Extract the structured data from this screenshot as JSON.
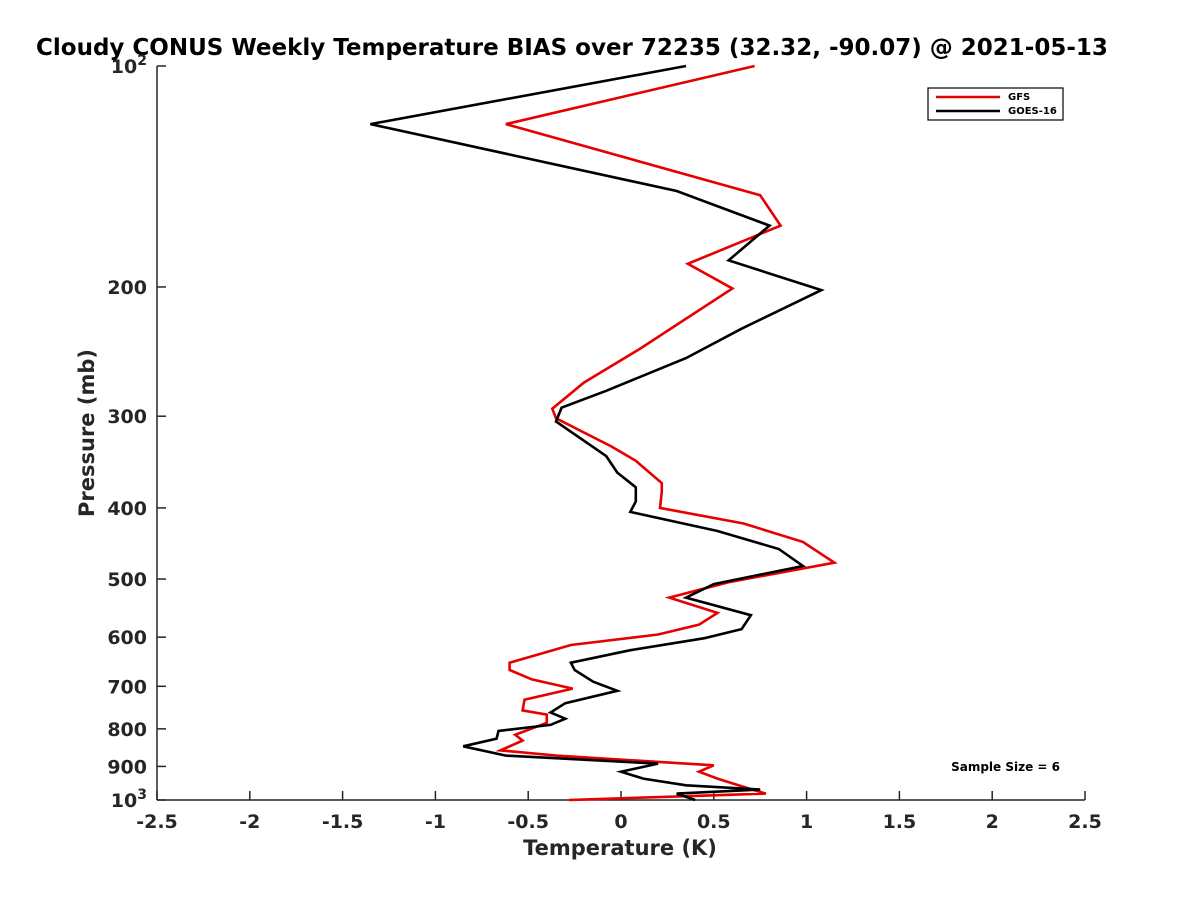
{
  "chart_data": {
    "type": "line",
    "title": "Cloudy CONUS Weekly Temperature BIAS over 72235 (32.32, -90.07) @ 2021-05-13",
    "xlabel": "Temperature (K)",
    "ylabel": "Pressure (mb)",
    "xlim": [
      -2.5,
      2.5
    ],
    "ylim": [
      100,
      1000
    ],
    "yscale": "log",
    "y_reversed": true,
    "grid": false,
    "legend_position": "top-right",
    "x_ticks": [
      -2.5,
      -2,
      -1.5,
      -1,
      -0.5,
      0,
      0.5,
      1,
      1.5,
      2,
      2.5
    ],
    "x_tick_labels": [
      "-2.5",
      "-2",
      "-1.5",
      "-1",
      "-0.5",
      "0",
      "0.5",
      "1",
      "1.5",
      "2",
      "2.5"
    ],
    "y_ticks": [
      100,
      200,
      300,
      400,
      500,
      600,
      700,
      800,
      900,
      1000
    ],
    "y_tick_labels": [
      {
        "base": "10",
        "exp": "2"
      },
      {
        "base": "200",
        "exp": ""
      },
      {
        "base": "300",
        "exp": ""
      },
      {
        "base": "400",
        "exp": ""
      },
      {
        "base": "500",
        "exp": ""
      },
      {
        "base": "600",
        "exp": ""
      },
      {
        "base": "700",
        "exp": ""
      },
      {
        "base": "800",
        "exp": ""
      },
      {
        "base": "900",
        "exp": ""
      },
      {
        "base": "10",
        "exp": "3"
      }
    ],
    "series": [
      {
        "name": "GFS",
        "color": "#e60000",
        "points": [
          {
            "t": 0.72,
            "p": 100
          },
          {
            "t": -0.62,
            "p": 120
          },
          {
            "t": 0.75,
            "p": 150
          },
          {
            "t": 0.86,
            "p": 165
          },
          {
            "t": 0.36,
            "p": 186
          },
          {
            "t": 0.6,
            "p": 201
          },
          {
            "t": 0.1,
            "p": 243
          },
          {
            "t": -0.2,
            "p": 270
          },
          {
            "t": -0.37,
            "p": 293
          },
          {
            "t": -0.35,
            "p": 302
          },
          {
            "t": -0.05,
            "p": 330
          },
          {
            "t": 0.08,
            "p": 345
          },
          {
            "t": 0.22,
            "p": 370
          },
          {
            "t": 0.22,
            "p": 380
          },
          {
            "t": 0.21,
            "p": 400
          },
          {
            "t": 0.66,
            "p": 420
          },
          {
            "t": 0.98,
            "p": 445
          },
          {
            "t": 1.15,
            "p": 475
          },
          {
            "t": 0.58,
            "p": 505
          },
          {
            "t": 0.26,
            "p": 530
          },
          {
            "t": 0.52,
            "p": 556
          },
          {
            "t": 0.42,
            "p": 577
          },
          {
            "t": 0.2,
            "p": 595
          },
          {
            "t": -0.27,
            "p": 615
          },
          {
            "t": -0.6,
            "p": 650
          },
          {
            "t": -0.6,
            "p": 665
          },
          {
            "t": -0.48,
            "p": 685
          },
          {
            "t": -0.26,
            "p": 705
          },
          {
            "t": -0.52,
            "p": 730
          },
          {
            "t": -0.53,
            "p": 755
          },
          {
            "t": -0.4,
            "p": 765
          },
          {
            "t": -0.4,
            "p": 785
          },
          {
            "t": -0.57,
            "p": 815
          },
          {
            "t": -0.53,
            "p": 830
          },
          {
            "t": -0.65,
            "p": 856
          },
          {
            "t": -0.35,
            "p": 870
          },
          {
            "t": 0.5,
            "p": 897
          },
          {
            "t": 0.42,
            "p": 915
          },
          {
            "t": 0.52,
            "p": 935
          },
          {
            "t": 0.65,
            "p": 958
          },
          {
            "t": 0.78,
            "p": 980
          },
          {
            "t": 0.25,
            "p": 990
          },
          {
            "t": -0.28,
            "p": 1000
          }
        ]
      },
      {
        "name": "GOES-16",
        "color": "#000000",
        "points": [
          {
            "t": 0.35,
            "p": 100
          },
          {
            "t": -1.35,
            "p": 120
          },
          {
            "t": 0.3,
            "p": 148
          },
          {
            "t": 0.8,
            "p": 165
          },
          {
            "t": 0.58,
            "p": 184
          },
          {
            "t": 1.08,
            "p": 202
          },
          {
            "t": 0.65,
            "p": 228
          },
          {
            "t": 0.35,
            "p": 250
          },
          {
            "t": -0.08,
            "p": 277
          },
          {
            "t": -0.32,
            "p": 292
          },
          {
            "t": -0.35,
            "p": 305
          },
          {
            "t": -0.08,
            "p": 340
          },
          {
            "t": -0.02,
            "p": 358
          },
          {
            "t": 0.08,
            "p": 375
          },
          {
            "t": 0.08,
            "p": 392
          },
          {
            "t": 0.05,
            "p": 405
          },
          {
            "t": 0.52,
            "p": 430
          },
          {
            "t": 0.85,
            "p": 455
          },
          {
            "t": 0.98,
            "p": 480
          },
          {
            "t": 0.5,
            "p": 508
          },
          {
            "t": 0.35,
            "p": 530
          },
          {
            "t": 0.7,
            "p": 560
          },
          {
            "t": 0.65,
            "p": 585
          },
          {
            "t": 0.45,
            "p": 602
          },
          {
            "t": 0.05,
            "p": 625
          },
          {
            "t": -0.27,
            "p": 650
          },
          {
            "t": -0.25,
            "p": 665
          },
          {
            "t": -0.15,
            "p": 690
          },
          {
            "t": -0.02,
            "p": 710
          },
          {
            "t": -0.3,
            "p": 738
          },
          {
            "t": -0.38,
            "p": 760
          },
          {
            "t": -0.3,
            "p": 775
          },
          {
            "t": -0.38,
            "p": 790
          },
          {
            "t": -0.66,
            "p": 805
          },
          {
            "t": -0.67,
            "p": 825
          },
          {
            "t": -0.85,
            "p": 845
          },
          {
            "t": -0.62,
            "p": 870
          },
          {
            "t": 0.2,
            "p": 892
          },
          {
            "t": 0.0,
            "p": 915
          },
          {
            "t": 0.12,
            "p": 935
          },
          {
            "t": 0.35,
            "p": 955
          },
          {
            "t": 0.75,
            "p": 968
          },
          {
            "t": 0.3,
            "p": 980
          },
          {
            "t": 0.4,
            "p": 1000
          }
        ]
      }
    ],
    "legend": [
      "GFS",
      "GOES-16"
    ],
    "annotations": [
      {
        "text": "Sample Size = 6",
        "position": "bottom-right"
      }
    ]
  }
}
